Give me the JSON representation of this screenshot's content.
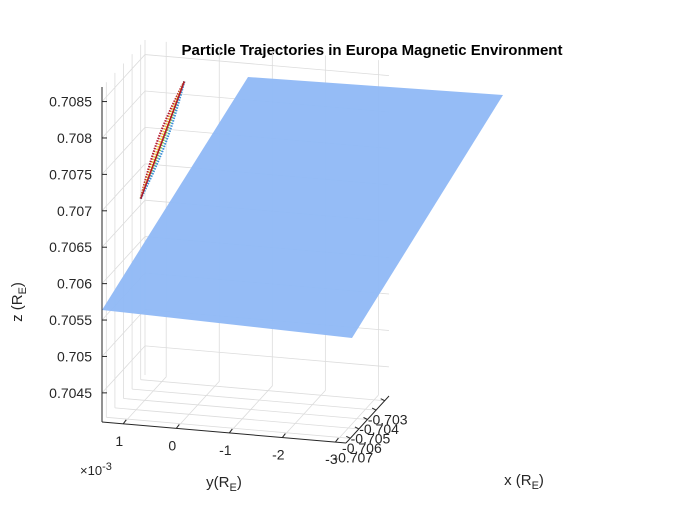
{
  "chart_data": {
    "type": "scatter",
    "title": "Particle Trajectories in Europa Magnetic Environment",
    "xlabel": {
      "main": "x (R",
      "sub": "E",
      "close": ")"
    },
    "ylabel": {
      "main": "y(R",
      "sub": "E",
      "close": ")"
    },
    "zlabel": {
      "main": "z (R",
      "sub": "E",
      "close": ")"
    },
    "x_ticks": [
      "-0.707",
      "-0.706",
      "-0.705",
      "-0.704",
      "-0.703"
    ],
    "y_ticks": [
      "1",
      "0",
      "-1",
      "-2",
      "-3"
    ],
    "y_multiplier": "×10",
    "y_multiplier_exp": "-3",
    "z_ticks": [
      "0.7045",
      "0.705",
      "0.7055",
      "0.706",
      "0.7065",
      "0.707",
      "0.7075",
      "0.708",
      "0.7085"
    ],
    "xlim": [
      -0.7075,
      -0.7025
    ],
    "ylim": [
      -0.0032,
      0.0014
    ],
    "zlim": [
      0.7041,
      0.7087
    ],
    "grid": true,
    "plane_color": "#8fb8f5",
    "trajectory_colors": [
      "#b5172b",
      "#e8c232",
      "#6bbf4a",
      "#3c8fd6"
    ],
    "trajectory": {
      "start": {
        "x": -0.7067,
        "y": 0.0008,
        "z": 0.7071
      },
      "end": {
        "x": -0.7041,
        "y": 0.0004,
        "z": 0.7084
      }
    }
  }
}
